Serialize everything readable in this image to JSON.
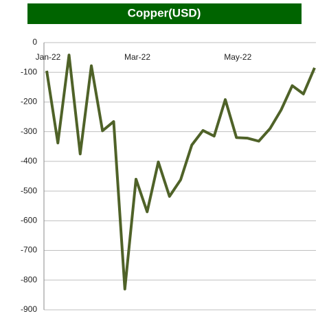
{
  "chart_data": {
    "type": "line",
    "title": "Copper(USD)",
    "categories": [
      "Jan-22",
      null,
      null,
      null,
      null,
      null,
      null,
      null,
      "Mar-22",
      null,
      null,
      null,
      null,
      null,
      null,
      null,
      null,
      "May-22",
      null,
      null,
      null,
      null,
      null,
      null,
      null
    ],
    "series": [
      {
        "name": "Copper",
        "color": "#4f6228",
        "values": [
          -95,
          -338,
          -42,
          -375,
          -78,
          -297,
          -266,
          -830,
          -460,
          -570,
          -402,
          -518,
          -462,
          -345,
          -296,
          -315,
          -192,
          -320,
          -322,
          -332,
          -290,
          -227,
          -145,
          -173,
          -85
        ]
      }
    ],
    "ylim": [
      -900,
      0
    ],
    "yticks": [
      0,
      -100,
      -200,
      -300,
      -400,
      -500,
      -600,
      -700,
      -800,
      -900
    ],
    "grid": true,
    "title_color": "#006400"
  }
}
